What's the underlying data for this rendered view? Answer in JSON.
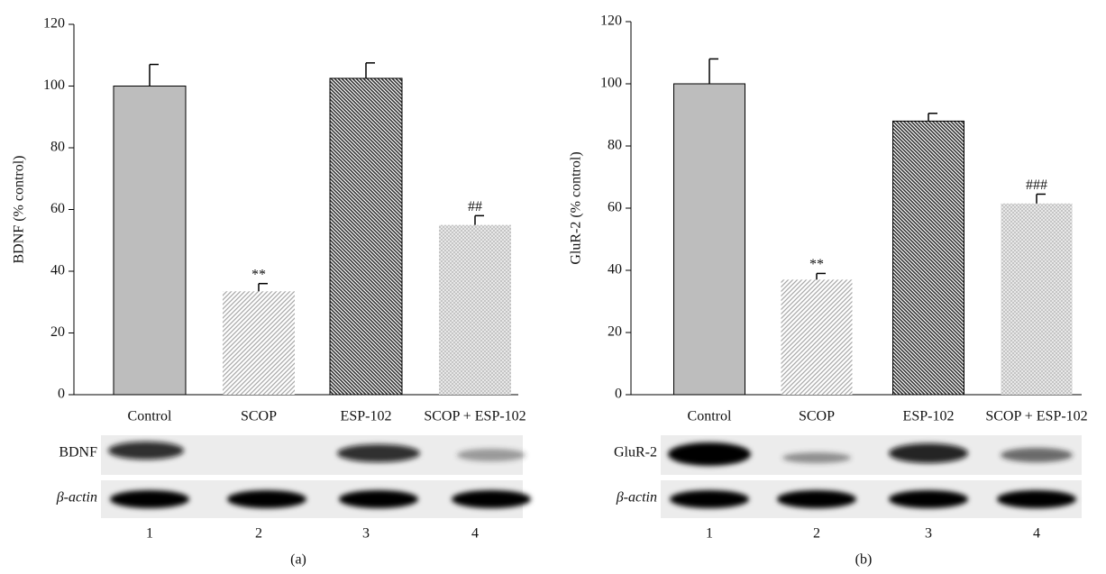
{
  "chart_data": [
    {
      "type": "bar",
      "ylabel": "BDNF (% control)",
      "categories": [
        "Control",
        "SCOP",
        "ESP-102",
        "SCOP + ESP-102"
      ],
      "values": [
        100,
        33.5,
        102.5,
        55
      ],
      "errors": [
        7,
        2.5,
        5,
        3
      ],
      "annotations": [
        null,
        "**",
        null,
        "##"
      ],
      "ylim": [
        0,
        120
      ],
      "yticks": [
        0,
        20,
        40,
        60,
        80,
        100,
        120
      ],
      "blot": {
        "labels": [
          "BDNF",
          "β-actin"
        ],
        "lanes": [
          1,
          2,
          3,
          4
        ]
      },
      "panel": "(a)"
    },
    {
      "type": "bar",
      "ylabel": "GluR-2 (% control)",
      "categories": [
        "Control",
        "SCOP",
        "ESP-102",
        "SCOP + ESP-102"
      ],
      "values": [
        100,
        37,
        88,
        61.5
      ],
      "errors": [
        8,
        2,
        2.5,
        3
      ],
      "annotations": [
        null,
        "**",
        null,
        "###"
      ],
      "ylim": [
        0,
        120
      ],
      "yticks": [
        0,
        20,
        40,
        60,
        80,
        100,
        120
      ],
      "blot": {
        "labels": [
          "GluR-2",
          "β-actin"
        ],
        "lanes": [
          1,
          2,
          3,
          4
        ]
      },
      "panel": "(b)"
    }
  ]
}
